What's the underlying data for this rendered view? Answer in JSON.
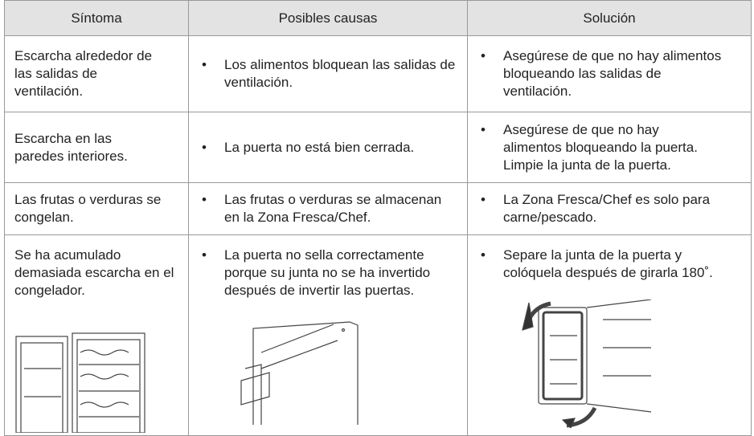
{
  "table": {
    "header": [
      "Síntoma",
      "Posibles causas",
      "Solución"
    ],
    "rows": [
      [
        "Escarcha alrededor de las salidas de ventilación.",
        "Los alimentos bloquean las salidas de ventilación.",
        "Asegúrese de que no hay alimentos bloqueando las salidas de ventilación."
      ],
      [
        "Escarcha en las paredes interiores.",
        "La puerta no está bien cerrada.",
        "Asegúrese de que no hay alimentos bloqueando la puerta. Limpie la junta de la puerta."
      ],
      [
        "Las frutas o verduras se congelan.",
        "Las frutas o verduras se almacenan en la Zona Fresca/Chef.",
        "La Zona Fresca/Chef es solo para carne/pescado."
      ],
      [
        "Se ha acumulado demasiada escarcha en el congelador.",
        "La puerta no sella correctamente porque su junta no se ha invertido después de invertir las puertas.",
        "Separe la junta de la puerta y colóquela después de girarla 180˚."
      ]
    ]
  }
}
